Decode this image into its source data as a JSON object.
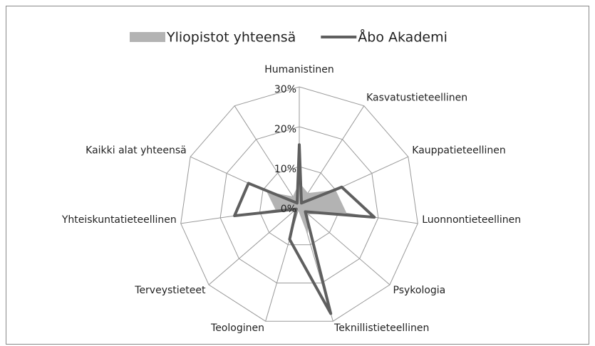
{
  "chart_data": {
    "type": "radar",
    "categories": [
      "Humanistinen",
      "Kasvatustieteellinen",
      "Kauppatieteellinen",
      "Luonnontieteellinen",
      "Psykologia",
      "Teknillistieteellinen",
      "Teologinen",
      "Terveystieteet",
      "Yhteiskuntatieteellinen",
      "Kaikki alat yhteensä",
      null
    ],
    "series": [
      {
        "name": "Yliopistot yhteensä",
        "color": "#b3b3b3",
        "style": "area",
        "values": [
          6,
          4,
          10,
          12,
          3,
          7.5,
          1,
          2,
          6,
          9,
          3
        ]
      },
      {
        "name": "Åbo Akademi",
        "color": "#5f5f5f",
        "style": "line",
        "values": [
          15.5,
          1,
          11.7,
          19,
          2,
          28,
          8.6,
          1,
          16.4,
          14,
          1
        ]
      }
    ],
    "ylim": [
      0,
      30
    ],
    "yticks": [
      {
        "value": 0,
        "label": "0%"
      },
      {
        "value": 10,
        "label": "10%"
      },
      {
        "value": 20,
        "label": "20%"
      },
      {
        "value": 30,
        "label": "30%"
      }
    ],
    "grid": true,
    "legend": "top"
  }
}
